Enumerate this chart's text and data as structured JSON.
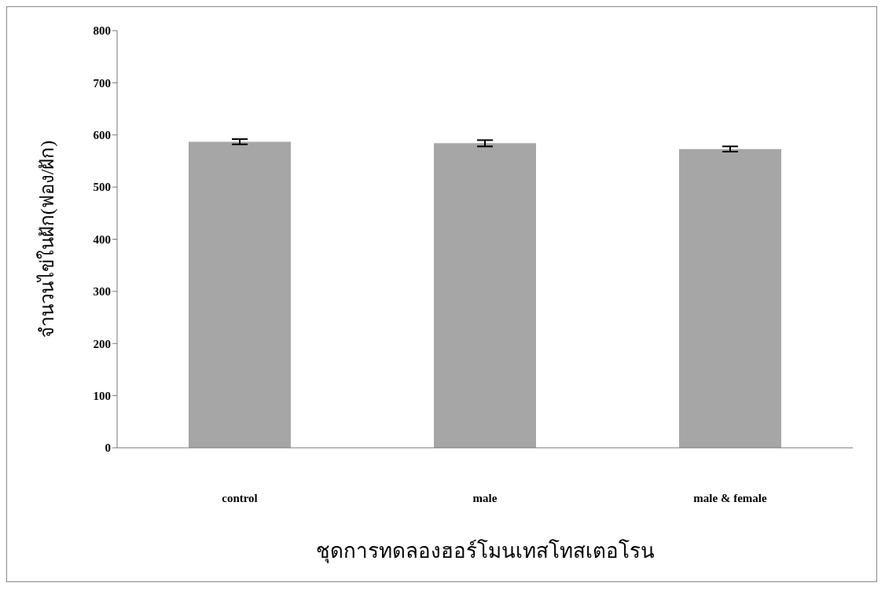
{
  "chart_data": {
    "type": "bar",
    "xlabel": "ชุดการทดลองฮอร์โมนเทสโทสเตอโรน",
    "ylabel": "จำนวนไข่ในฝัก(ฟอง/ฝัก)",
    "categories": [
      "control",
      "male",
      "male & female"
    ],
    "values": [
      587,
      584,
      573
    ],
    "errors": [
      5,
      6,
      5
    ],
    "color": "#a6a6a6",
    "ylim": [
      0,
      800
    ],
    "yticks": [
      0,
      100,
      200,
      300,
      400,
      500,
      600,
      700,
      800
    ]
  }
}
